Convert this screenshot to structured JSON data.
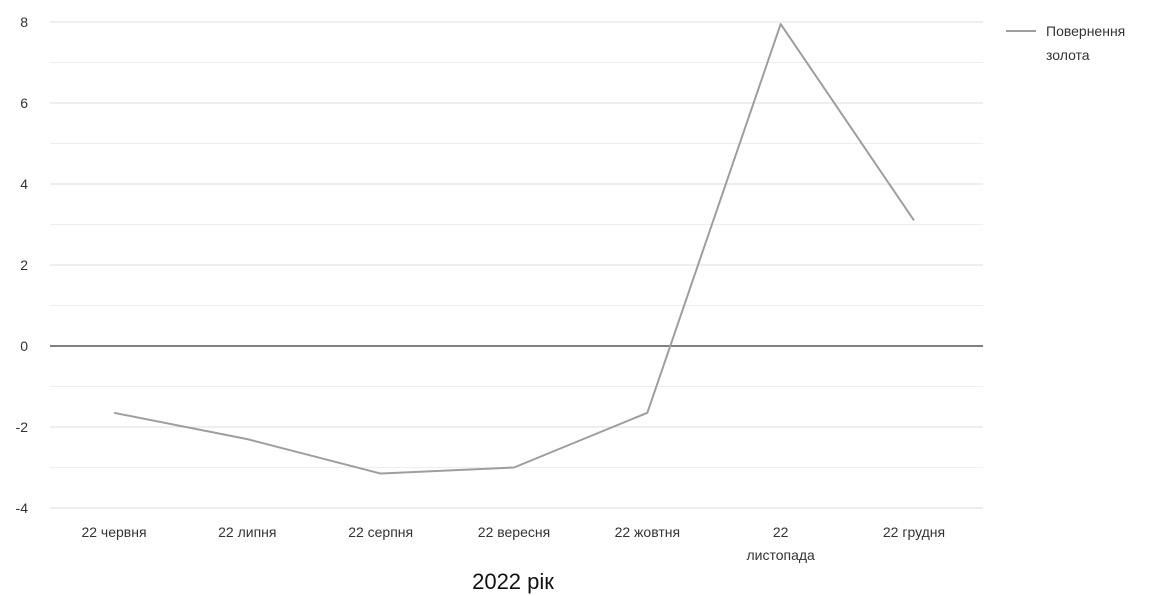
{
  "chart_data": {
    "type": "line",
    "title": "",
    "xlabel": "2022 рік",
    "ylabel": "",
    "categories": [
      [
        "22 червня"
      ],
      [
        "22 липня"
      ],
      [
        "22 серпня"
      ],
      [
        "22 вересня"
      ],
      [
        "22 жовтня"
      ],
      [
        "22",
        "листопада"
      ],
      [
        "22 грудня"
      ]
    ],
    "series": [
      {
        "name": "Повернення золота",
        "name_lines": [
          "Повернення",
          "золота"
        ],
        "color": "#9e9e9e",
        "values": [
          -1.65,
          -2.3,
          -3.15,
          -3.0,
          -1.65,
          7.95,
          3.1
        ]
      }
    ],
    "ylim": [
      -4,
      8
    ],
    "yticks": [
      -4,
      -2,
      0,
      2,
      4,
      6,
      8
    ],
    "minor_grid": true,
    "grid": true,
    "legend": "right",
    "zero_line_color": "#000000",
    "grid_color": "#dddddd",
    "minor_grid_color": "#eeeeee"
  }
}
